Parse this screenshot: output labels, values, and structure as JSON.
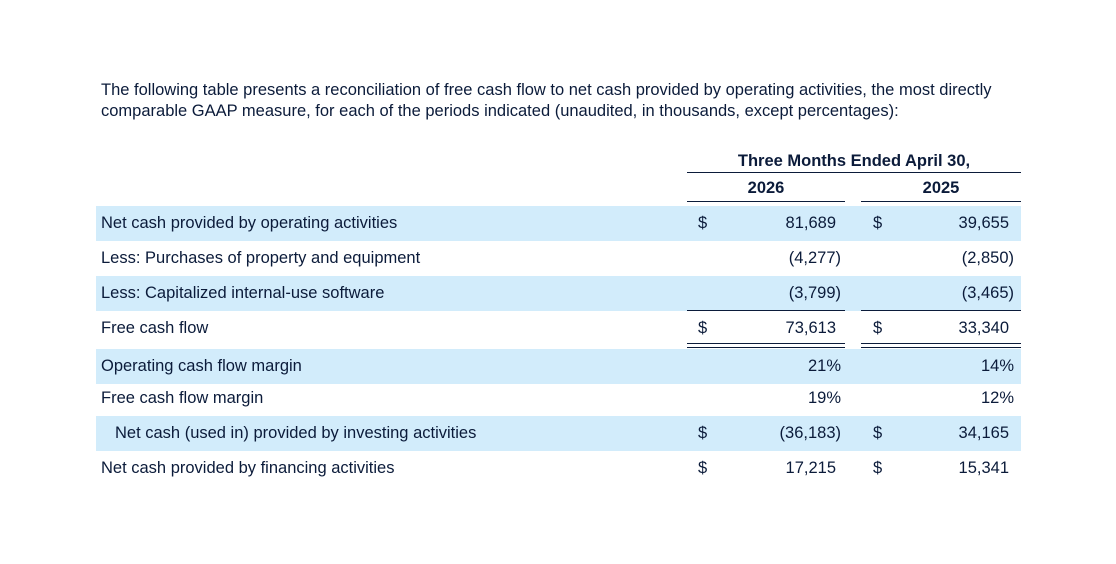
{
  "intro_text": "The following table presents a reconciliation of free cash flow to net cash provided by operating activities, the most directly comparable GAAP measure, for each of the periods indicated (unaudited, in thousands, except percentages):",
  "table": {
    "period_header": "Three Months Ended April 30,",
    "years": [
      "2026",
      "2025"
    ],
    "rows": [
      {
        "label": "Net cash provided by operating activities",
        "cur1": "$",
        "val1": "81,689",
        "cur2": "$",
        "val2": "39,655"
      },
      {
        "label": "Less: Purchases of property and equipment",
        "cur1": "",
        "val1": "(4,277)",
        "cur2": "",
        "val2": "(2,850)"
      },
      {
        "label": "Less: Capitalized internal-use software",
        "cur1": "",
        "val1": "(3,799)",
        "cur2": "",
        "val2": "(3,465)"
      },
      {
        "label": "Free cash flow",
        "cur1": "$",
        "val1": "73,613",
        "cur2": "$",
        "val2": "33,340"
      },
      {
        "label": "Operating cash flow margin",
        "cur1": "",
        "val1": "21%",
        "cur2": "",
        "val2": "14%"
      },
      {
        "label": "Free cash flow margin",
        "cur1": "",
        "val1": "19%",
        "cur2": "",
        "val2": "12%"
      },
      {
        "label": "Net cash (used in) provided by investing activities",
        "cur1": "$",
        "val1": "(36,183)",
        "cur2": "$",
        "val2": "34,165"
      },
      {
        "label": "Net cash provided by financing activities",
        "cur1": "$",
        "val1": "17,215",
        "cur2": "$",
        "val2": "15,341"
      }
    ]
  },
  "colors": {
    "text": "#0b1b3a",
    "row_shade": "#d2ecfb",
    "background": "#ffffff"
  }
}
